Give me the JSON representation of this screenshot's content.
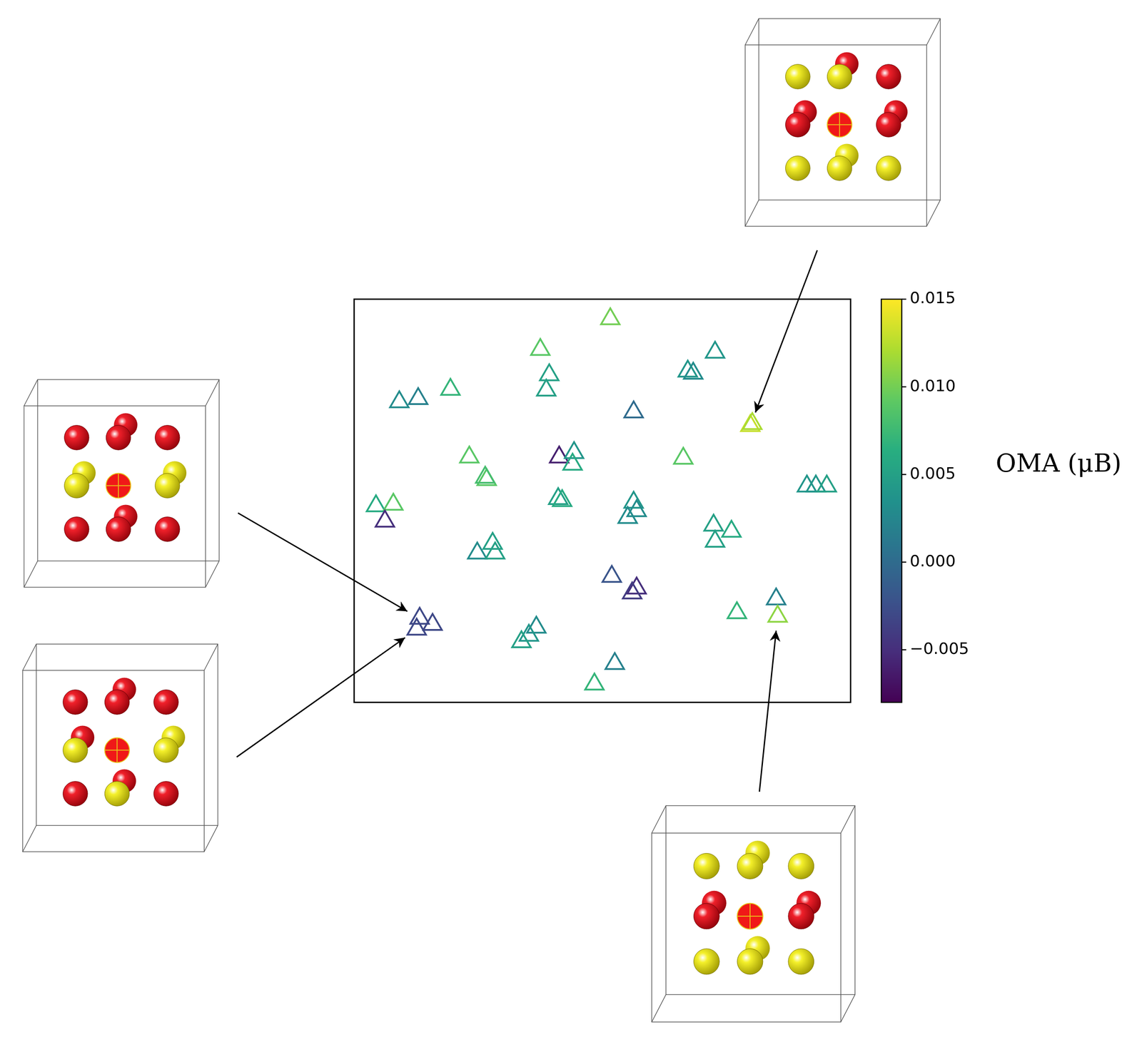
{
  "chart_data": {
    "type": "scatter",
    "marker": "triangle",
    "tick_labels": false,
    "xlim": [
      0,
      100
    ],
    "ylim": [
      0,
      100
    ],
    "x": [
      51.6,
      37.5,
      39.3,
      38.7,
      19.4,
      9.1,
      12.9,
      72.7,
      67.2,
      68.3,
      56.3,
      79.8,
      80.2,
      23.2,
      26.7,
      26.4,
      41.3,
      44.3,
      44.0,
      66.3,
      91.2,
      93.0,
      95.2,
      4.4,
      7.9,
      6.2,
      41.1,
      41.9,
      56.3,
      56.9,
      55.1,
      72.4,
      76.0,
      72.7,
      24.8,
      27.9,
      28.4,
      51.9,
      56.9,
      56.0,
      13.2,
      15.8,
      12.6,
      36.7,
      35.2,
      33.7,
      77.1,
      85.0,
      85.3,
      52.5,
      48.4
    ],
    "y": [
      95.1,
      87.5,
      81.2,
      77.4,
      77.6,
      74.5,
      75.3,
      86.8,
      82.1,
      81.6,
      72.0,
      68.6,
      69.1,
      60.8,
      55.2,
      55.8,
      60.8,
      61.9,
      59.0,
      60.5,
      53.6,
      53.6,
      53.6,
      48.7,
      49.1,
      44.9,
      50.5,
      50.0,
      49.6,
      47.5,
      45.8,
      43.9,
      42.4,
      39.9,
      37.0,
      39.4,
      37.0,
      31.2,
      28.3,
      27.1,
      20.8,
      19.3,
      18.1,
      18.6,
      16.6,
      15.0,
      22.2,
      25.6,
      21.3,
      9.6,
      4.5
    ],
    "oma": [
      0.01,
      0.009,
      0.005,
      0.005,
      0.007,
      0.003,
      0.002,
      0.004,
      0.004,
      0.003,
      0.0,
      0.013,
      0.012,
      0.009,
      0.009,
      0.008,
      -0.006,
      0.004,
      0.006,
      0.009,
      0.004,
      0.004,
      0.005,
      0.006,
      0.009,
      -0.005,
      0.005,
      0.006,
      0.004,
      0.003,
      0.003,
      0.005,
      0.006,
      0.005,
      0.003,
      0.005,
      0.005,
      -0.002,
      -0.005,
      -0.004,
      -0.003,
      -0.003,
      -0.003,
      0.003,
      0.004,
      0.005,
      0.007,
      0.002,
      0.011,
      0.002,
      0.007
    ],
    "colorbar": {
      "label": "OMA (μB)",
      "range": [
        -0.008,
        0.015
      ],
      "ticks": [
        {
          "value": -0.005,
          "label": "−0.005"
        },
        {
          "value": 0,
          "label": "0.000"
        },
        {
          "value": 0.005,
          "label": "0.005"
        },
        {
          "value": 0.01,
          "label": "0.010"
        },
        {
          "value": 0.015,
          "label": "0.015"
        }
      ]
    }
  }
}
